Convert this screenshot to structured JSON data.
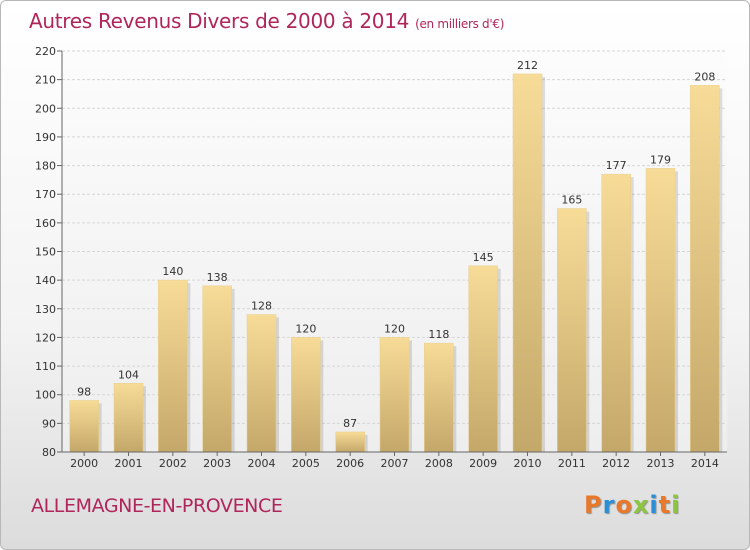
{
  "header": {
    "title": "Autres Revenus Divers de 2000 à 2014",
    "subtitle": "(en milliers d'€)"
  },
  "footer": {
    "place_name": "ALLEMAGNE-EN-PROVENCE",
    "logo_text": "Proxiti"
  },
  "colors": {
    "title": "#b0265b",
    "bar_light": "#f7dc98",
    "bar_dark": "#c4a86a",
    "logo_letters": [
      "#e8782a",
      "#2a8fd6",
      "#e8782a",
      "#8cc63f",
      "#2a8fd6",
      "#e8782a",
      "#8cc63f"
    ]
  },
  "chart_data": {
    "type": "bar",
    "categories": [
      "2000",
      "2001",
      "2002",
      "2003",
      "2004",
      "2005",
      "2006",
      "2007",
      "2008",
      "2009",
      "2010",
      "2011",
      "2012",
      "2013",
      "2014"
    ],
    "values": [
      98,
      104,
      140,
      138,
      128,
      120,
      87,
      120,
      118,
      145,
      212,
      165,
      177,
      179,
      208
    ],
    "title": "Autres Revenus Divers de 2000 à 2014",
    "xlabel": "",
    "ylabel": "",
    "ylim": [
      80,
      220
    ],
    "yticks": [
      80,
      90,
      100,
      110,
      120,
      130,
      140,
      150,
      160,
      170,
      180,
      190,
      200,
      210,
      220
    ],
    "grid": true,
    "data_labels": true
  }
}
